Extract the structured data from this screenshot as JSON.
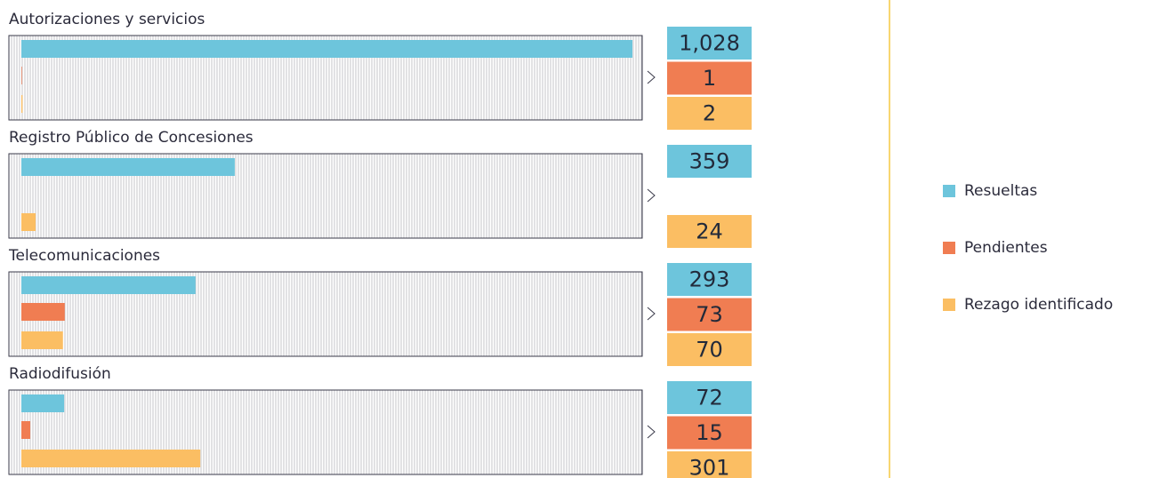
{
  "chart_data": {
    "type": "bar",
    "orientation": "horizontal",
    "categories": [
      "Autorizaciones y servicios",
      "Registro Público de Concesiones",
      "Telecomunicaciones",
      "Radiodifusión"
    ],
    "series": [
      {
        "name": "Resueltas",
        "color": "#6dc5dc",
        "values": [
          1028,
          359,
          293,
          72
        ],
        "value_labels": [
          "1,028",
          "359",
          "293",
          "72"
        ]
      },
      {
        "name": "Pendientes",
        "color": "#f07d52",
        "values": [
          1,
          null,
          73,
          15
        ]
      },
      {
        "name": "Rezago identificado",
        "color": "#fbbe63",
        "values": [
          2,
          24,
          70,
          301
        ]
      }
    ],
    "xlim": [
      0,
      1028
    ]
  }
}
